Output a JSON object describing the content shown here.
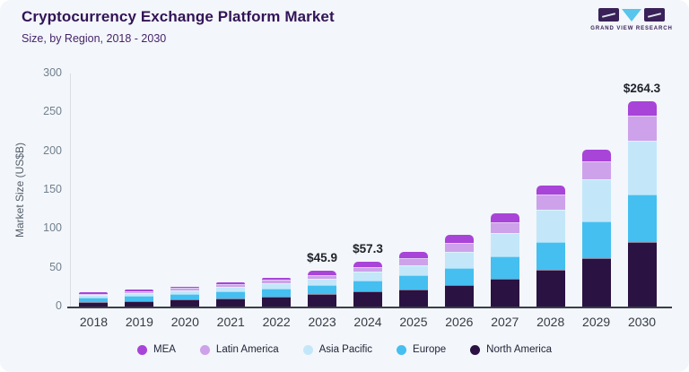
{
  "header": {
    "title": "Cryptocurrency Exchange Platform Market",
    "subtitle": "Size, by Region, 2018 - 2030",
    "logo_text": "GRAND VIEW RESEARCH"
  },
  "colors": {
    "background": "#f3f6fa",
    "title_text": "#321457",
    "subtitle_text": "#45246b",
    "ytick_text": "#71808e",
    "xtick_text": "#363b44",
    "annotation_text": "#20232b",
    "bottom_axis": "#3a3f4a",
    "left_axis": "#d9dee6",
    "logo_purple": "#3a2158",
    "logo_blue": "#57c5ec",
    "mea": "#a844d8",
    "latin_america": "#cda2ea",
    "asia_pacific": "#c3e7f9",
    "europe": "#45bff0",
    "north_america": "#2a1242"
  },
  "chart_data": {
    "type": "bar",
    "stacked": true,
    "title": "Cryptocurrency Exchange Platform Market",
    "subtitle": "Size, by Region, 2018 - 2030",
    "xlabel": "",
    "ylabel": "Market Size (US$B)",
    "ylim": [
      0,
      300
    ],
    "yticks": [
      0,
      50,
      100,
      150,
      200,
      250,
      300
    ],
    "grid": false,
    "legend_position": "bottom",
    "categories": [
      "2018",
      "2019",
      "2020",
      "2021",
      "2022",
      "2023",
      "2024",
      "2025",
      "2026",
      "2027",
      "2028",
      "2029",
      "2030"
    ],
    "series": [
      {
        "name": "North America",
        "color_key": "north_america",
        "values": [
          6.2,
          7.4,
          8.8,
          10.6,
          12.9,
          15.7,
          19.4,
          22.5,
          27.3,
          36.0,
          47.5,
          62.0,
          83.1
        ]
      },
      {
        "name": "Europe",
        "color_key": "europe",
        "values": [
          5.6,
          6.6,
          7.8,
          9.2,
          10.1,
          11.7,
          14.6,
          17.7,
          22.0,
          28.4,
          35.4,
          48.0,
          61.1
        ]
      },
      {
        "name": "Asia Pacific",
        "color_key": "asia_pacific",
        "values": [
          3.1,
          3.8,
          4.7,
          5.8,
          7.3,
          8.7,
          11.0,
          13.1,
          21.4,
          30.0,
          42.0,
          54.0,
          68.9
        ]
      },
      {
        "name": "Latin America",
        "color_key": "latin_america",
        "values": [
          1.6,
          2.0,
          2.4,
          3.0,
          3.8,
          4.9,
          6.2,
          8.9,
          11.6,
          14.6,
          19.0,
          23.5,
          32.3
        ]
      },
      {
        "name": "MEA",
        "color_key": "mea",
        "values": [
          1.5,
          1.8,
          2.2,
          2.7,
          3.4,
          4.9,
          6.1,
          8.5,
          10.4,
          10.6,
          12.4,
          14.5,
          18.9
        ]
      }
    ],
    "totals": [
      18.0,
      21.6,
      25.9,
      31.3,
      37.5,
      45.9,
      57.3,
      70.7,
      92.7,
      119.6,
      156.3,
      202.0,
      264.3
    ],
    "annotations": [
      {
        "category": "2023",
        "label": "$45.9"
      },
      {
        "category": "2024",
        "label": "$57.3"
      },
      {
        "category": "2030",
        "label": "$264.3"
      }
    ]
  },
  "legend": [
    {
      "label": "MEA",
      "color_key": "mea"
    },
    {
      "label": "Latin America",
      "color_key": "latin_america"
    },
    {
      "label": "Asia Pacific",
      "color_key": "asia_pacific"
    },
    {
      "label": "Europe",
      "color_key": "europe"
    },
    {
      "label": "North America",
      "color_key": "north_america"
    }
  ]
}
